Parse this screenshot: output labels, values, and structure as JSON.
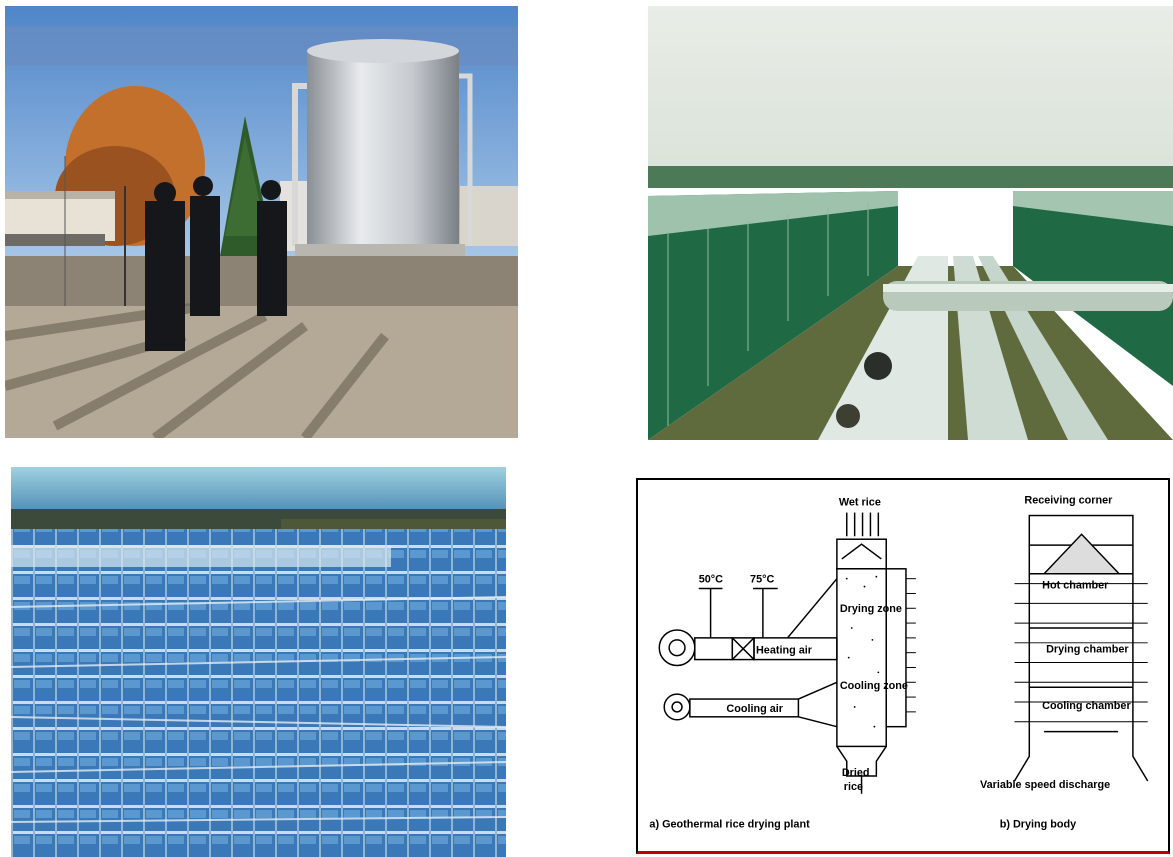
{
  "diagram": {
    "label_wet_rice": "Wet rice",
    "label_dried_rice_1": "Dried",
    "label_dried_rice_2": "rice",
    "label_temp_1": "50°C",
    "label_temp_2": "75°C",
    "label_heating_air": "Heating air",
    "label_cooling_air": "Cooling air",
    "label_drying_zone": "Drying zone",
    "label_cooling_zone": "Cooling zone",
    "label_receiving_corner": "Receiving corner",
    "label_hot_chamber": "Hot chamber",
    "label_drying_chamber": "Drying chamber",
    "label_cooling_chamber": "Cooling chamber",
    "label_variable_speed": "Variable speed discharge",
    "caption_a": "a) Geothermal rice drying plant",
    "caption_b": "b) Drying body"
  }
}
